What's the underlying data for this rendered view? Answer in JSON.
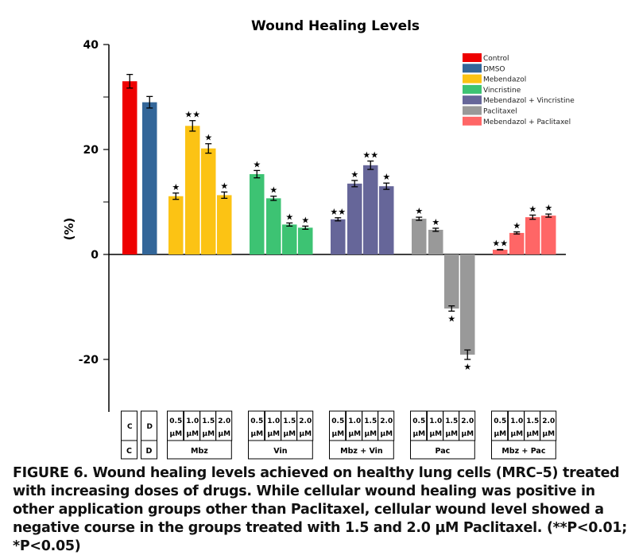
{
  "chart_data": {
    "type": "bar",
    "title": "Wound Healing Levels",
    "ylabel": "(%)",
    "ylim": [
      -30,
      40
    ],
    "yticks": [
      40,
      20,
      0,
      -20
    ],
    "grid": false,
    "legend_position": "top-right",
    "legend": [
      {
        "name": "Control",
        "color": "#ee0000"
      },
      {
        "name": "DMSO",
        "color": "#336699"
      },
      {
        "name": "Mebendazol",
        "color": "#fcc314"
      },
      {
        "name": "Vincristine",
        "color": "#3dc373"
      },
      {
        "name": "Mebendazol + Vincristine",
        "color": "#666699"
      },
      {
        "name": "Paclitaxel",
        "color": "#999999"
      },
      {
        "name": "Mebendazol + Paclitaxel",
        "color": "#ff6666"
      }
    ],
    "groups": [
      {
        "label": "C",
        "series": 0,
        "doses": [
          "C"
        ],
        "values": [
          33.0
        ],
        "errors": [
          1.3
        ],
        "sig": [
          ""
        ]
      },
      {
        "label": "D",
        "series": 1,
        "doses": [
          "D"
        ],
        "values": [
          29.0
        ],
        "errors": [
          1.1
        ],
        "sig": [
          ""
        ]
      },
      {
        "label": "Mbz",
        "series": 2,
        "doses": [
          "0.5 µM",
          "1.0 µM",
          "1.5 µM",
          "2.0 µM"
        ],
        "values": [
          11.1,
          24.5,
          20.2,
          11.3
        ],
        "errors": [
          0.6,
          1.0,
          0.9,
          0.6
        ],
        "sig": [
          "*",
          "**",
          "*",
          "*"
        ]
      },
      {
        "label": "Vin",
        "series": 3,
        "doses": [
          "0.5 µM",
          "1.0 µM",
          "1.5 µM",
          "2.0 µM"
        ],
        "values": [
          15.3,
          10.7,
          5.7,
          5.1
        ],
        "errors": [
          0.7,
          0.4,
          0.3,
          0.3
        ],
        "sig": [
          "*",
          "*",
          "*",
          "*"
        ]
      },
      {
        "label": "Mbz + Vin",
        "series": 4,
        "doses": [
          "0.5 µM",
          "1.0 µM",
          "1.5 µM",
          "2.0 µM"
        ],
        "values": [
          6.7,
          13.5,
          17.0,
          13.0
        ],
        "errors": [
          0.3,
          0.6,
          0.8,
          0.6
        ],
        "sig": [
          "**",
          "*",
          "**",
          "*"
        ]
      },
      {
        "label": "Pac",
        "series": 5,
        "doses": [
          "0.5 µM",
          "1.0 µM",
          "1.5 µM",
          "2.0 µM"
        ],
        "values": [
          6.8,
          4.7,
          -10.3,
          -19.1
        ],
        "errors": [
          0.3,
          0.3,
          0.5,
          0.9
        ],
        "sig": [
          "*",
          "*",
          "*",
          "*"
        ]
      },
      {
        "label": "Mbz + Pac",
        "series": 6,
        "doses": [
          "0.5 µM",
          "1.0 µM",
          "1.5 µM",
          "2.0 µM"
        ],
        "values": [
          0.9,
          4.1,
          7.1,
          7.4
        ],
        "errors": [
          0.05,
          0.2,
          0.4,
          0.3
        ],
        "sig": [
          "**",
          "*",
          "*",
          "*"
        ]
      }
    ]
  },
  "caption": {
    "label": "FIGURE 6.",
    "text": " Wound healing levels achieved on healthy lung cells (MRC–5) treated with increasing doses of drugs. While cellular wound healing was positive in other application groups other than Paclitaxel, cellular wound level showed a negative course in the groups treated with 1.5 and 2.0 µM Paclitaxel.",
    "note": " (**P<0.01; *P<0.05)"
  }
}
